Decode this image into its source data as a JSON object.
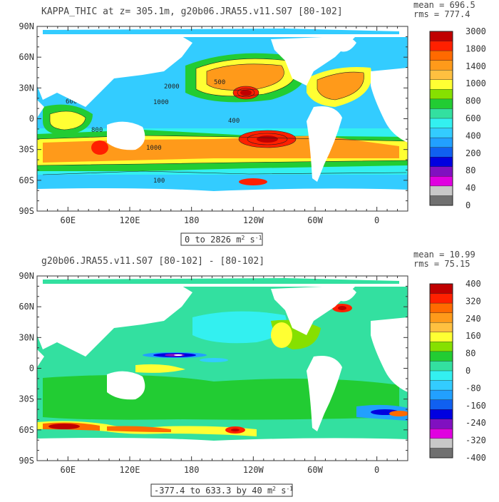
{
  "panels": [
    {
      "title": "KAPPA_THIC at z= 305.1m, g20b06.JRA55.v11.S07 [80-102]",
      "mean_text": "mean = 696.5",
      "rms_text": "rms = 777.4",
      "range_label_main": "0 to 2826 m",
      "range_label_unit": "2",
      "range_label_s": " s",
      "range_label_exp": "-1",
      "lat_labels": [
        "90N",
        "60N",
        "30N",
        "0",
        "30S",
        "60S",
        "90S"
      ],
      "lon_labels": [
        "60E",
        "120E",
        "180",
        "120W",
        "60W",
        "0"
      ],
      "colorbar_labels": [
        "3000",
        "1800",
        "1400",
        "1000",
        "800",
        "600",
        "400",
        "200",
        "80",
        "40",
        "0"
      ],
      "colorbar_colors": [
        "#c00000",
        "#ff2000",
        "#ff6a00",
        "#ff9a1a",
        "#ffc040",
        "#ffff33",
        "#86e000",
        "#22cc33",
        "#33e0a0",
        "#33f0f0",
        "#33ccff",
        "#22a0ff",
        "#1060f0",
        "#0000e0",
        "#8010c0",
        "#e000e0",
        "#c8c8c8",
        "#707070"
      ]
    },
    {
      "title": "g20b06.JRA55.v11.S07 [80-102] -  [80-102]",
      "mean_text": "mean = 10.99",
      "rms_text": "rms = 75.15",
      "range_label_main": "-377.4 to 633.3 by 40 m",
      "range_label_unit": "2",
      "range_label_s": " s",
      "range_label_exp": "-1",
      "lat_labels": [
        "90N",
        "60N",
        "30N",
        "0",
        "30S",
        "60S",
        "90S"
      ],
      "lon_labels": [
        "60E",
        "120E",
        "180",
        "120W",
        "60W",
        "0"
      ],
      "colorbar_labels": [
        "400",
        "320",
        "240",
        "160",
        "80",
        "0",
        "-80",
        "-160",
        "-240",
        "-320",
        "-400"
      ],
      "colorbar_colors": [
        "#c00000",
        "#ff2000",
        "#ff6a00",
        "#ff9a1a",
        "#ffc040",
        "#ffff33",
        "#86e000",
        "#22cc33",
        "#33e0a0",
        "#33f0f0",
        "#33ccff",
        "#22a0ff",
        "#1060f0",
        "#0000e0",
        "#8010c0",
        "#e000e0",
        "#c8c8c8",
        "#707070"
      ]
    }
  ],
  "chart_data": [
    {
      "type": "heatmap",
      "title": "KAPPA_THIC at z= 305.1m, g20b06.JRA55.v11.S07 [80-102]",
      "variable": "KAPPA_THIC",
      "depth": "305.1m",
      "units": "m^2 s^-1",
      "mean": 696.5,
      "rms": 777.4,
      "value_range": [
        0,
        2826
      ],
      "colorbar_levels": [
        0,
        40,
        80,
        200,
        400,
        600,
        800,
        1000,
        1400,
        1800,
        3000
      ],
      "xlim": [
        "30E",
        "30E+360"
      ],
      "ylim": [
        "90S",
        "90N"
      ],
      "lat_ticks": [
        "90N",
        "60N",
        "30N",
        "0",
        "30S",
        "60S",
        "90S"
      ],
      "lon_ticks": [
        "60E",
        "120E",
        "180",
        "120W",
        "60W",
        "0"
      ],
      "contour_labels": [
        600,
        1000,
        2000,
        400,
        800,
        1000,
        500,
        100
      ]
    },
    {
      "type": "heatmap",
      "title": "g20b06.JRA55.v11.S07 [80-102] -  [80-102]",
      "variable": "difference",
      "units": "m^2 s^-1",
      "mean": 10.99,
      "rms": 75.15,
      "value_range": [
        -377.4,
        633.3
      ],
      "contour_interval": 40,
      "colorbar_levels": [
        -400,
        -320,
        -240,
        -160,
        -80,
        0,
        80,
        160,
        240,
        320,
        400
      ],
      "xlim": [
        "30E",
        "30E+360"
      ],
      "ylim": [
        "90S",
        "90N"
      ],
      "lat_ticks": [
        "90N",
        "60N",
        "30N",
        "0",
        "30S",
        "60S",
        "90S"
      ],
      "lon_ticks": [
        "60E",
        "120E",
        "180",
        "120W",
        "60W",
        "0"
      ]
    }
  ]
}
